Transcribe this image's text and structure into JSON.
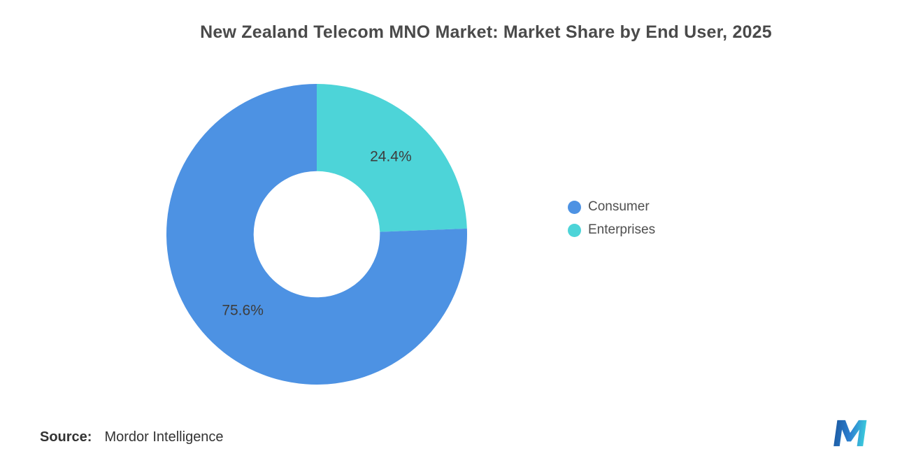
{
  "page": {
    "title": "New Zealand Telecom MNO Market: Market Share by End User, 2025",
    "source_label": "Source:",
    "source_value": "Mordor Intelligence",
    "logo": "mordor-intelligence-logo"
  },
  "chart_data": {
    "type": "pie",
    "subtype": "donut",
    "title": "New Zealand Telecom MNO Market: Market Share by End User, 2025",
    "start_angle_deg": 0,
    "direction": "clockwise",
    "inner_radius_ratio": 0.42,
    "label_color": "#3d3d3d",
    "slices": [
      {
        "label": "Enterprises",
        "value": 24.4,
        "data_label": "24.4%",
        "color": "#4DD4D8"
      },
      {
        "label": "Consumer",
        "value": 75.6,
        "data_label": "75.6%",
        "color": "#4D92E3"
      }
    ],
    "legend": {
      "position": "right",
      "order": [
        "Consumer",
        "Enterprises"
      ]
    }
  }
}
